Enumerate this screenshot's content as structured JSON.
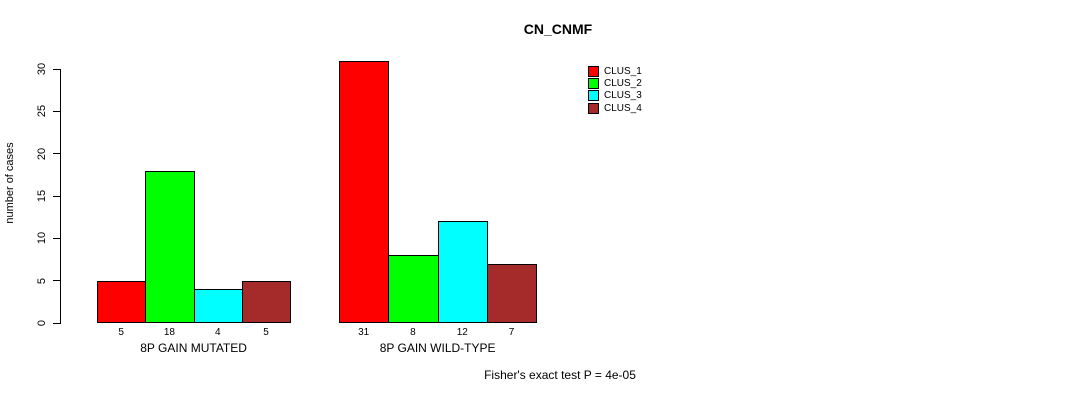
{
  "window": {
    "background": "#ffffff"
  },
  "chart_data": {
    "type": "bar",
    "title": "CN_CNMF",
    "ylabel": "number of cases",
    "xlabel": "",
    "ylim": [
      0,
      31
    ],
    "yticks": [
      0,
      5,
      10,
      15,
      20,
      25,
      30
    ],
    "grid": false,
    "legend_position": "top-right",
    "categories": [
      "8P GAIN MUTATED",
      "8P GAIN WILD-TYPE"
    ],
    "series": [
      {
        "name": "CLUS_1",
        "color": "#ff0000",
        "values": [
          5,
          31
        ]
      },
      {
        "name": "CLUS_2",
        "color": "#00ff00",
        "values": [
          18,
          8
        ]
      },
      {
        "name": "CLUS_3",
        "color": "#00ffff",
        "values": [
          4,
          12
        ]
      },
      {
        "name": "CLUS_4",
        "color": "#a52a2a",
        "values": [
          5,
          7
        ]
      }
    ],
    "bar_value_labels": [
      [
        "5",
        "18",
        "4",
        "5"
      ],
      [
        "31",
        "8",
        "12",
        "7"
      ]
    ],
    "annotation": "Fisher's exact test P = 4e-05"
  }
}
